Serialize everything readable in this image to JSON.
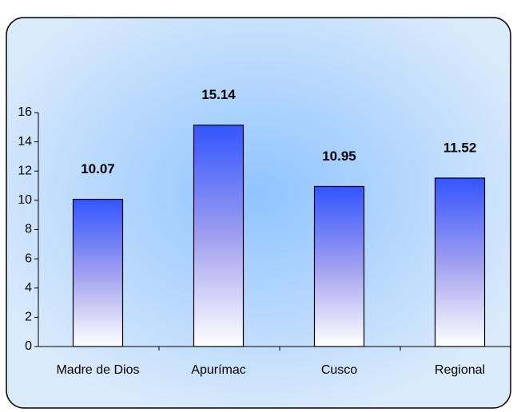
{
  "chart_data": {
    "type": "bar",
    "categories": [
      "Madre de Dios",
      "Apurímac",
      "Cusco",
      "Regional"
    ],
    "values": [
      10.07,
      15.14,
      10.95,
      11.52
    ],
    "color": "#3355ff",
    "ylim": [
      0,
      16
    ],
    "yticks": [
      0,
      2,
      4,
      6,
      8,
      10,
      12,
      14,
      16
    ],
    "grid": false
  }
}
